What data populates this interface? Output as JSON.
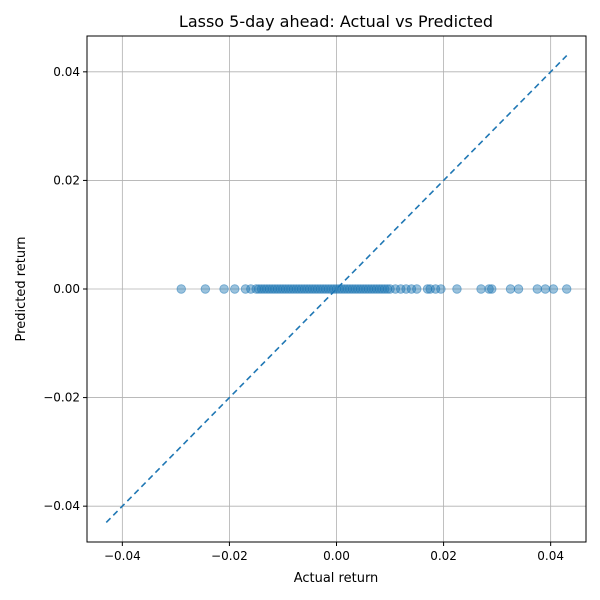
{
  "chart_data": {
    "type": "scatter",
    "title": "Lasso 5-day ahead: Actual vs Predicted",
    "xlabel": "Actual return",
    "ylabel": "Predicted return",
    "xlim": [
      -0.0466,
      0.0466
    ],
    "ylim": [
      -0.0466,
      0.0466
    ],
    "xticks": [
      -0.04,
      -0.02,
      0.0,
      0.02,
      0.04
    ],
    "yticks": [
      -0.04,
      -0.02,
      0.0,
      0.02,
      0.04
    ],
    "xtick_labels": [
      "−0.04",
      "−0.02",
      "0.00",
      "0.02",
      "0.04"
    ],
    "ytick_labels": [
      "−0.04",
      "−0.02",
      "0.00",
      "0.02",
      "0.04"
    ],
    "grid": true,
    "reference_line": {
      "style": "dashed",
      "from": [
        -0.043,
        -0.043
      ],
      "to": [
        0.043,
        0.043
      ]
    },
    "colors": {
      "point": "#1f77b4",
      "line": "#1f77b4",
      "grid": "#b0b0b0"
    },
    "series": [
      {
        "x": [
          -0.029,
          -0.0245,
          -0.021,
          -0.019,
          -0.017,
          -0.016,
          -0.015,
          -0.0145,
          -0.014,
          -0.0135,
          -0.013,
          -0.0125,
          -0.012,
          -0.0115,
          -0.011,
          -0.0105,
          -0.01,
          -0.0095,
          -0.009,
          -0.0085,
          -0.008,
          -0.0075,
          -0.007,
          -0.0065,
          -0.006,
          -0.0055,
          -0.005,
          -0.0045,
          -0.004,
          -0.0035,
          -0.003,
          -0.0025,
          -0.002,
          -0.0015,
          -0.001,
          -0.0005,
          0.0,
          0.0005,
          0.001,
          0.0015,
          0.002,
          0.0025,
          0.003,
          0.0035,
          0.004,
          0.0045,
          0.005,
          0.0055,
          0.006,
          0.0065,
          0.007,
          0.0075,
          0.008,
          0.0085,
          0.009,
          0.0095,
          0.01,
          0.011,
          0.012,
          0.013,
          0.014,
          0.015,
          0.017,
          0.0175,
          0.0185,
          0.0195,
          0.0225,
          0.027,
          0.0285,
          0.029,
          0.0325,
          0.034,
          0.0375,
          0.039,
          0.0405,
          0.043
        ],
        "y": [
          0,
          0,
          0,
          0,
          0,
          0,
          0,
          0,
          0,
          0,
          0,
          0,
          0,
          0,
          0,
          0,
          0,
          0,
          0,
          0,
          0,
          0,
          0,
          0,
          0,
          0,
          0,
          0,
          0,
          0,
          0,
          0,
          0,
          0,
          0,
          0,
          0,
          0,
          0,
          0,
          0,
          0,
          0,
          0,
          0,
          0,
          0,
          0,
          0,
          0,
          0,
          0,
          0,
          0,
          0,
          0,
          0,
          0,
          0,
          0,
          0,
          0,
          0,
          0,
          0,
          0,
          0,
          0,
          0,
          0,
          0,
          0,
          0,
          0,
          0,
          0
        ]
      }
    ]
  }
}
